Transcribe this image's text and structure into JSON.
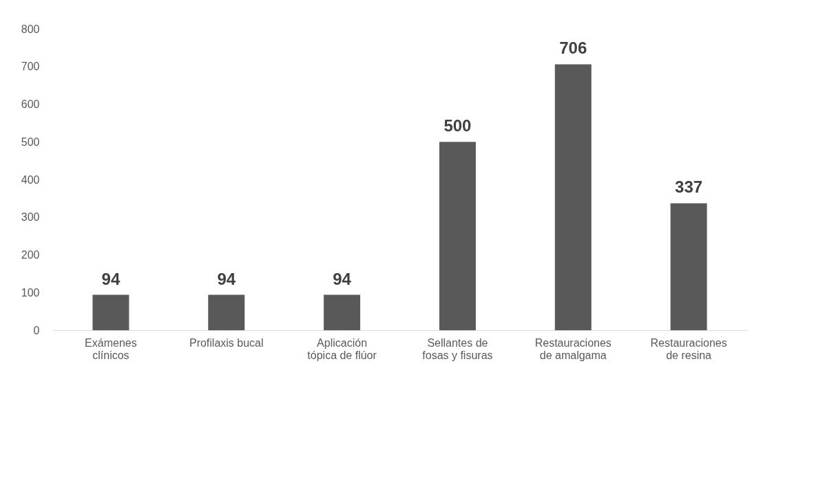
{
  "chart_data": {
    "type": "bar",
    "categories": [
      "Exámenes clínicos",
      "Profilaxis bucal",
      "Aplicación tópica de flúor",
      "Sellantes de fosas y fisuras",
      "Restauraciones de amalgama",
      "Restauraciones de resina"
    ],
    "values": [
      94,
      94,
      94,
      500,
      706,
      337
    ],
    "color": "#595959",
    "ylim": [
      0,
      800
    ],
    "yticks": [
      0,
      100,
      200,
      300,
      400,
      500,
      600,
      700,
      800
    ],
    "data_labels": true,
    "grid": false
  }
}
